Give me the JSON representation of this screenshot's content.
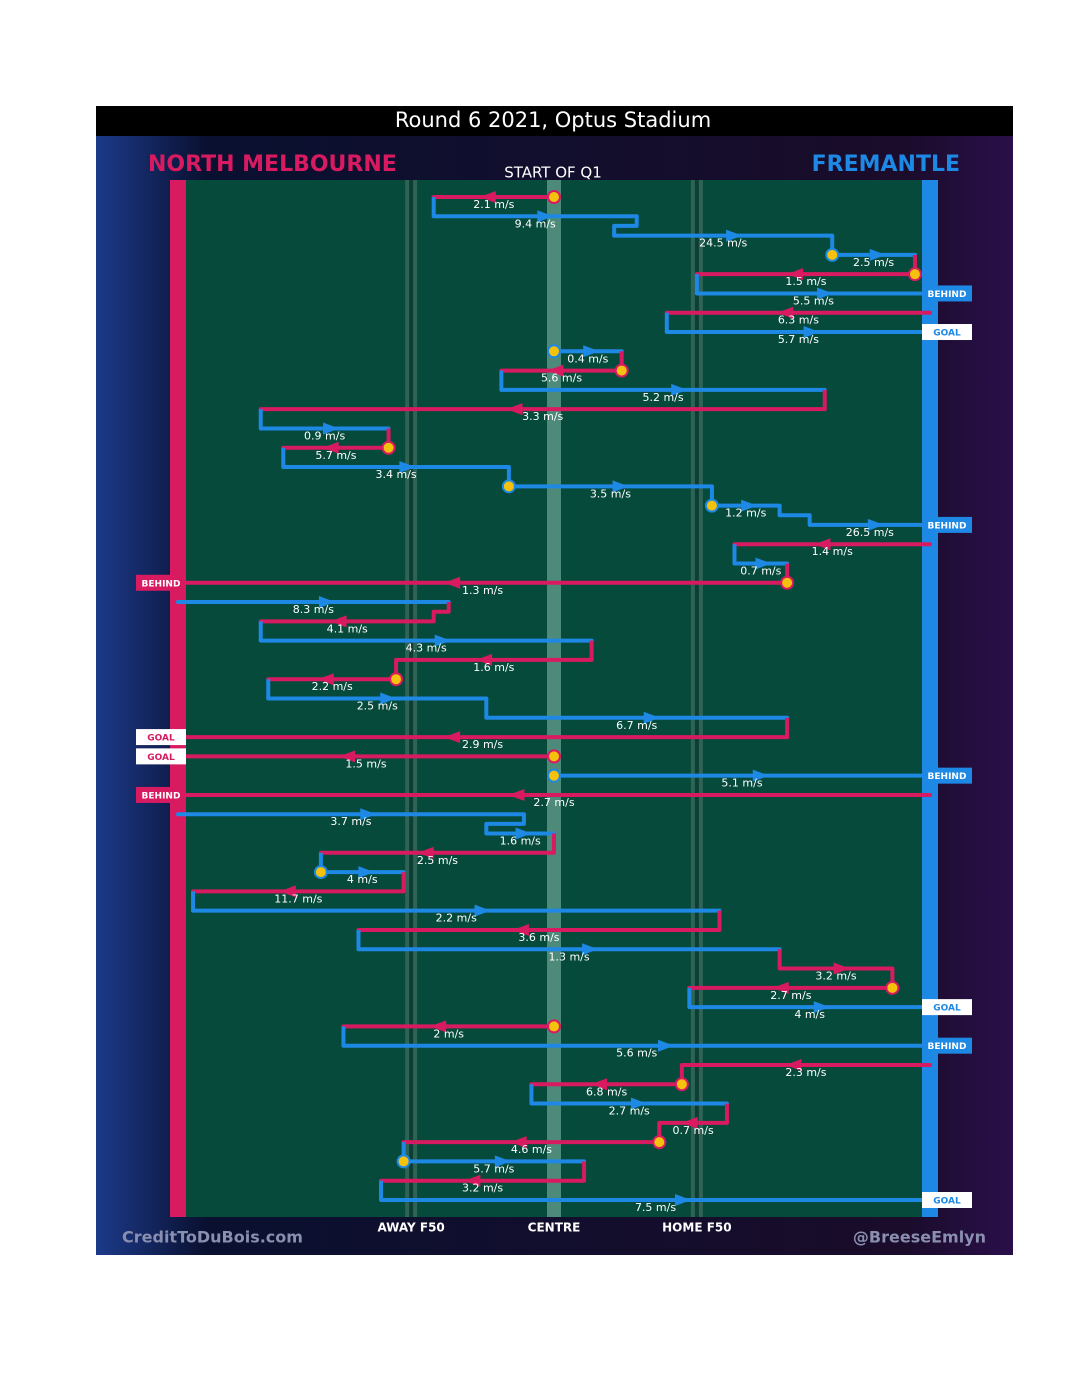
{
  "chart_data": {
    "type": "chain",
    "title": "Round 6 2021, Optus Stadium",
    "subtitle": "START OF Q1",
    "teams": [
      {
        "name": "NORTH MELBOURNE",
        "color": "#d81b60"
      },
      {
        "name": "FREMANTLE",
        "color": "#1e88e5"
      }
    ],
    "credit_left": "CreditToDuBois.com",
    "credit_right": "@BreeseEmlyn",
    "xlim": [
      0,
      100
    ],
    "xticks": [
      {
        "value": 31,
        "label": "AWAY F50"
      },
      {
        "value": 50,
        "label": "CENTRE"
      },
      {
        "value": 69,
        "label": "HOME F50"
      }
    ],
    "stoppage_color": "#f4c20d",
    "segments": [
      {
        "from": 50,
        "to": 34,
        "label": "2.1 m/s",
        "color": "#d81b60",
        "stoppage": true
      },
      {
        "from": 34,
        "to": 61,
        "label": "9.4 m/s",
        "color": "#1e88e5"
      },
      {
        "from": 58,
        "to": 87,
        "label": "24.5 m/s",
        "color": "#1e88e5"
      },
      {
        "from": 87,
        "to": 98,
        "label": "2.5 m/s",
        "color": "#1e88e5",
        "stoppage": true
      },
      {
        "from": 98,
        "to": 69,
        "label": "1.5 m/s",
        "color": "#d81b60",
        "stoppage": true
      },
      {
        "from": 69,
        "to": 100,
        "label": "5.5 m/s",
        "color": "#1e88e5",
        "result": "BEHIND"
      },
      {
        "from": 100,
        "to": 65,
        "label": "6.3 m/s",
        "color": "#d81b60"
      },
      {
        "from": 65,
        "to": 100,
        "label": "5.7 m/s",
        "color": "#1e88e5",
        "result": "GOAL"
      },
      {
        "from": 50,
        "to": 59,
        "label": "0.4 m/s",
        "color": "#1e88e5",
        "stoppage": true
      },
      {
        "from": 59,
        "to": 43,
        "label": "5.6 m/s",
        "color": "#d81b60",
        "stoppage": true
      },
      {
        "from": 43,
        "to": 86,
        "label": "5.2 m/s",
        "color": "#1e88e5"
      },
      {
        "from": 86,
        "to": 11,
        "label": "3.3 m/s",
        "color": "#d81b60"
      },
      {
        "from": 11,
        "to": 28,
        "label": "0.9 m/s",
        "color": "#1e88e5"
      },
      {
        "from": 28,
        "to": 14,
        "label": "5.7 m/s",
        "color": "#d81b60",
        "stoppage": true
      },
      {
        "from": 14,
        "to": 44,
        "label": "3.4 m/s",
        "color": "#1e88e5"
      },
      {
        "from": 44,
        "to": 71,
        "label": "3.5 m/s",
        "color": "#1e88e5",
        "stoppage": true
      },
      {
        "from": 71,
        "to": 80,
        "label": "1.2 m/s",
        "color": "#1e88e5",
        "stoppage": true
      },
      {
        "from": 84,
        "to": 100,
        "label": "26.5 m/s",
        "color": "#1e88e5",
        "result": "BEHIND"
      },
      {
        "from": 100,
        "to": 74,
        "label": "1.4 m/s",
        "color": "#d81b60"
      },
      {
        "from": 74,
        "to": 81,
        "label": "0.7 m/s",
        "color": "#1e88e5"
      },
      {
        "from": 81,
        "to": 0,
        "label": "1.3 m/s",
        "color": "#d81b60",
        "stoppage": true,
        "result": "BEHIND"
      },
      {
        "from": 0,
        "to": 36,
        "label": "8.3 m/s",
        "color": "#1e88e5"
      },
      {
        "from": 34,
        "to": 11,
        "label": "4.1 m/s",
        "color": "#d81b60"
      },
      {
        "from": 11,
        "to": 55,
        "label": "4.3 m/s",
        "color": "#1e88e5"
      },
      {
        "from": 55,
        "to": 29,
        "label": "1.6 m/s",
        "color": "#d81b60"
      },
      {
        "from": 29,
        "to": 12,
        "label": "2.2 m/s",
        "color": "#d81b60",
        "stoppage": true
      },
      {
        "from": 12,
        "to": 41,
        "label": "2.5 m/s",
        "color": "#1e88e5"
      },
      {
        "from": 41,
        "to": 81,
        "label": "6.7 m/s",
        "color": "#1e88e5"
      },
      {
        "from": 81,
        "to": 0,
        "label": "2.9 m/s",
        "color": "#d81b60",
        "result": "GOAL"
      },
      {
        "from": 50,
        "to": 0,
        "label": "1.5 m/s",
        "color": "#d81b60",
        "stoppage": true,
        "result": "GOAL"
      },
      {
        "from": 50,
        "to": 100,
        "label": "5.1 m/s",
        "color": "#1e88e5",
        "stoppage": true,
        "result": "BEHIND"
      },
      {
        "from": 100,
        "to": 0,
        "label": "2.7 m/s",
        "color": "#d81b60",
        "result": "BEHIND"
      },
      {
        "from": 0,
        "to": 46,
        "label": "3.7 m/s",
        "color": "#1e88e5"
      },
      {
        "from": 41,
        "to": 50,
        "label": "1.6 m/s",
        "color": "#1e88e5"
      },
      {
        "from": 50,
        "to": 19,
        "label": "2.5 m/s",
        "color": "#d81b60"
      },
      {
        "from": 19,
        "to": 30,
        "label": "4 m/s",
        "color": "#1e88e5",
        "stoppage": true
      },
      {
        "from": 30,
        "to": 2,
        "label": "11.7 m/s",
        "color": "#d81b60"
      },
      {
        "from": 2,
        "to": 72,
        "label": "2.2 m/s",
        "color": "#1e88e5"
      },
      {
        "from": 72,
        "to": 24,
        "label": "3.6 m/s",
        "color": "#d81b60"
      },
      {
        "from": 24,
        "to": 80,
        "label": "1.3 m/s",
        "color": "#1e88e5"
      },
      {
        "from": 80,
        "to": 95,
        "label": "3.2 m/s",
        "color": "#d81b60"
      },
      {
        "from": 95,
        "to": 68,
        "label": "2.7 m/s",
        "color": "#d81b60",
        "stoppage": true
      },
      {
        "from": 68,
        "to": 100,
        "label": "4 m/s",
        "color": "#1e88e5",
        "result": "GOAL"
      },
      {
        "from": 50,
        "to": 22,
        "label": "2 m/s",
        "color": "#d81b60",
        "stoppage": true
      },
      {
        "from": 22,
        "to": 100,
        "label": "5.6 m/s",
        "color": "#1e88e5",
        "result": "BEHIND"
      },
      {
        "from": 100,
        "to": 67,
        "label": "2.3 m/s",
        "color": "#d81b60"
      },
      {
        "from": 67,
        "to": 47,
        "label": "6.8 m/s",
        "color": "#d81b60",
        "stoppage": true
      },
      {
        "from": 47,
        "to": 73,
        "label": "2.7 m/s",
        "color": "#1e88e5"
      },
      {
        "from": 73,
        "to": 64,
        "label": "0.7 m/s",
        "color": "#d81b60"
      },
      {
        "from": 64,
        "to": 30,
        "label": "4.6 m/s",
        "color": "#d81b60",
        "stoppage": true
      },
      {
        "from": 30,
        "to": 54,
        "label": "5.7 m/s",
        "color": "#1e88e5",
        "stoppage": true
      },
      {
        "from": 54,
        "to": 27,
        "label": "3.2 m/s",
        "color": "#d81b60"
      },
      {
        "from": 27,
        "to": 100,
        "label": "7.5 m/s",
        "color": "#1e88e5",
        "result": "GOAL"
      }
    ]
  }
}
